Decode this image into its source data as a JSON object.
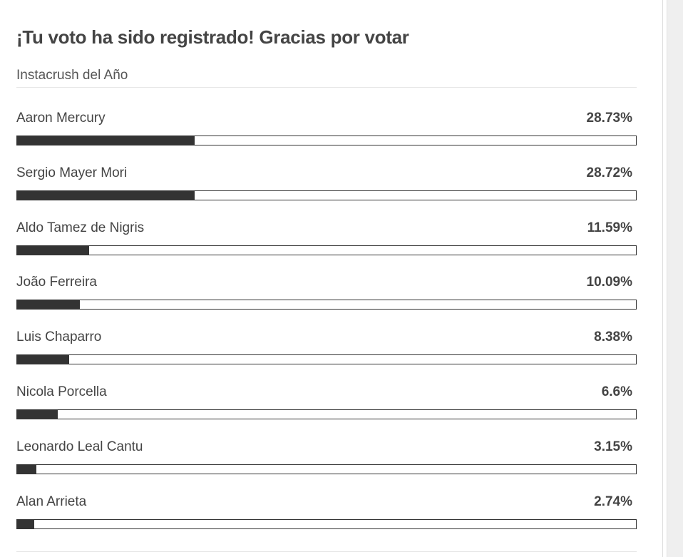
{
  "poll": {
    "title": "¡Tu voto ha sido registrado! Gracias por votar",
    "subtitle": "Instacrush del Año",
    "options": [
      {
        "name": "Aaron Mercury",
        "percent_label": "28.73%",
        "percent": 28.73
      },
      {
        "name": "Sergio Mayer Mori",
        "percent_label": "28.72%",
        "percent": 28.72
      },
      {
        "name": "Aldo Tamez de Nigris",
        "percent_label": "11.59%",
        "percent": 11.59
      },
      {
        "name": "João Ferreira",
        "percent_label": "10.09%",
        "percent": 10.09
      },
      {
        "name": "Luis Chaparro",
        "percent_label": "8.38%",
        "percent": 8.38
      },
      {
        "name": "Nicola Porcella",
        "percent_label": "6.6%",
        "percent": 6.6
      },
      {
        "name": "Leonardo Leal Cantu",
        "percent_label": "3.15%",
        "percent": 3.15
      },
      {
        "name": "Alan Arrieta",
        "percent_label": "2.74%",
        "percent": 2.74
      }
    ]
  },
  "colors": {
    "bar_fill": "#333333",
    "text": "#444444",
    "divider": "#e6e6e6"
  }
}
